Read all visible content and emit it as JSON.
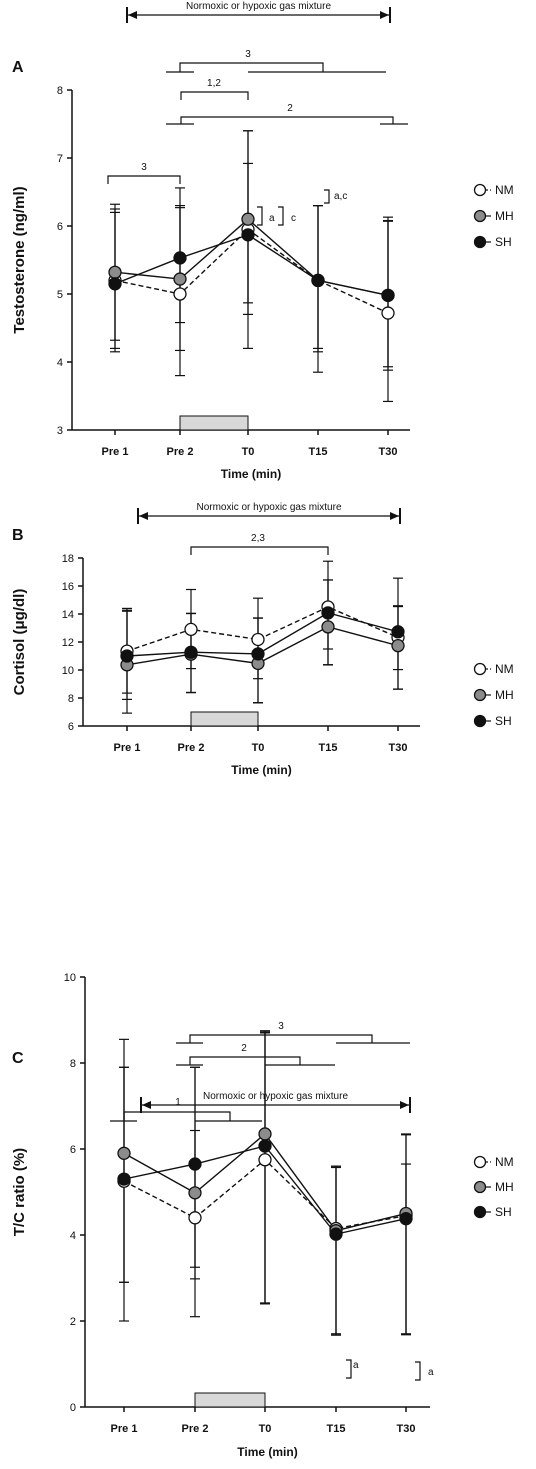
{
  "legend": [
    {
      "name": "NM",
      "fill": "#ffffff"
    },
    {
      "name": "MH",
      "fill": "#8c8c8c"
    },
    {
      "name": "SH",
      "fill": "#111111"
    }
  ],
  "chart_data": [
    {
      "type": "line",
      "panel_label": "A",
      "categories": [
        "Pre 1",
        "Pre 2",
        "T0",
        "T15",
        "T30"
      ],
      "xlabel": "Time (min)",
      "ylabel": "Testosterone (ng/ml)",
      "ylim": [
        3,
        8
      ],
      "yticks": [
        3,
        4,
        5,
        6,
        7,
        8
      ],
      "top_label": "Normoxic or hypoxic gas mixture",
      "series": [
        {
          "name": "NM",
          "values": [
            5.2,
            5.0,
            5.95,
            5.2,
            4.72
          ],
          "err_up": [
            1.05,
            1.3,
            1.45,
            1.1,
            1.35
          ],
          "err_down": [
            1.0,
            1.2,
            1.75,
            1.35,
            1.3
          ]
        },
        {
          "name": "MH",
          "values": [
            5.32,
            5.22,
            6.1,
            5.2,
            4.98
          ],
          "err_up": [
            1.0,
            1.05,
            1.3,
            1.1,
            1.15
          ],
          "err_down": [
            1.0,
            1.05,
            1.4,
            1.05,
            1.1
          ]
        },
        {
          "name": "SH",
          "values": [
            5.15,
            5.53,
            5.87,
            5.2,
            4.98
          ],
          "err_up": [
            1.05,
            1.03,
            1.05,
            1.1,
            1.1
          ],
          "err_down": [
            1.0,
            0.95,
            1.0,
            1.0,
            1.05
          ]
        }
      ],
      "brackets": [
        {
          "label": "3"
        },
        {
          "label": "1,2"
        },
        {
          "label": "2"
        },
        {
          "label": "3"
        }
      ],
      "annotations": [
        {
          "label": "a"
        },
        {
          "label": "c"
        },
        {
          "label": "a,c"
        }
      ]
    },
    {
      "type": "line",
      "panel_label": "B",
      "categories": [
        "Pre 1",
        "Pre 2",
        "T0",
        "T15",
        "T30"
      ],
      "xlabel": "Time (min)",
      "ylabel": "Cortisol (μg/dl)",
      "ylim": [
        6,
        18
      ],
      "yticks": [
        6,
        8,
        10,
        12,
        14,
        16,
        18
      ],
      "top_label": "Normoxic or hypoxic gas mixture",
      "series": [
        {
          "name": "NM",
          "values": [
            11.35,
            12.9,
            12.18,
            14.5,
            12.33
          ],
          "err_up": [
            3.05,
            2.85,
            2.95,
            3.27,
            2.2
          ],
          "err_down": [
            3.0,
            2.8,
            2.8,
            3.0,
            2.3
          ]
        },
        {
          "name": "MH",
          "values": [
            10.37,
            11.13,
            10.47,
            13.08,
            11.74
          ],
          "err_up": [
            3.9,
            2.9,
            3.25,
            3.35,
            2.85
          ],
          "err_down": [
            3.45,
            2.75,
            2.8,
            2.72,
            3.1
          ]
        },
        {
          "name": "SH",
          "values": [
            11.0,
            11.27,
            11.15,
            14.08,
            12.73
          ],
          "err_up": [
            3.2,
            2.78,
            2.55,
            2.35,
            3.83
          ],
          "err_down": [
            3.1,
            2.87,
            3.5,
            3.7,
            4.1
          ]
        }
      ],
      "brackets": [
        {
          "label": "2,3"
        }
      ],
      "annotations": []
    },
    {
      "type": "line",
      "panel_label": "C",
      "categories": [
        "Pre 1",
        "Pre 2",
        "T0",
        "T15",
        "T30"
      ],
      "xlabel": "Time (min)",
      "ylabel": "T/C ratio (%)",
      "ylim": [
        0,
        10
      ],
      "yticks": [
        0,
        2,
        4,
        6,
        8,
        10
      ],
      "top_label": "Normoxic or hypoxic gas mixture",
      "series": [
        {
          "name": "NM",
          "values": [
            5.25,
            4.4,
            5.75,
            4.15,
            4.45
          ],
          "err_up": [
            3.3,
            3.5,
            2.95,
            1.45,
            1.9
          ],
          "err_down": [
            3.25,
            2.3,
            3.35,
            2.45,
            2.75
          ]
        },
        {
          "name": "MH",
          "values": [
            5.9,
            4.98,
            6.35,
            4.1,
            4.5
          ],
          "err_up": [
            2.0,
            1.45,
            2.4,
            1.5,
            1.15
          ],
          "err_down": [
            3.0,
            2.0,
            3.95,
            2.4,
            2.8
          ]
        },
        {
          "name": "SH",
          "values": [
            5.3,
            5.65,
            6.07,
            4.02,
            4.38
          ],
          "err_up": [
            2.6,
            2.25,
            2.65,
            1.55,
            1.95
          ],
          "err_down": [
            2.4,
            2.4,
            3.65,
            2.35,
            2.7
          ]
        }
      ],
      "brackets": [
        {
          "label": "1"
        },
        {
          "label": "2"
        },
        {
          "label": "3"
        }
      ],
      "annotations": [
        {
          "label": "a"
        },
        {
          "label": "a"
        }
      ]
    }
  ]
}
